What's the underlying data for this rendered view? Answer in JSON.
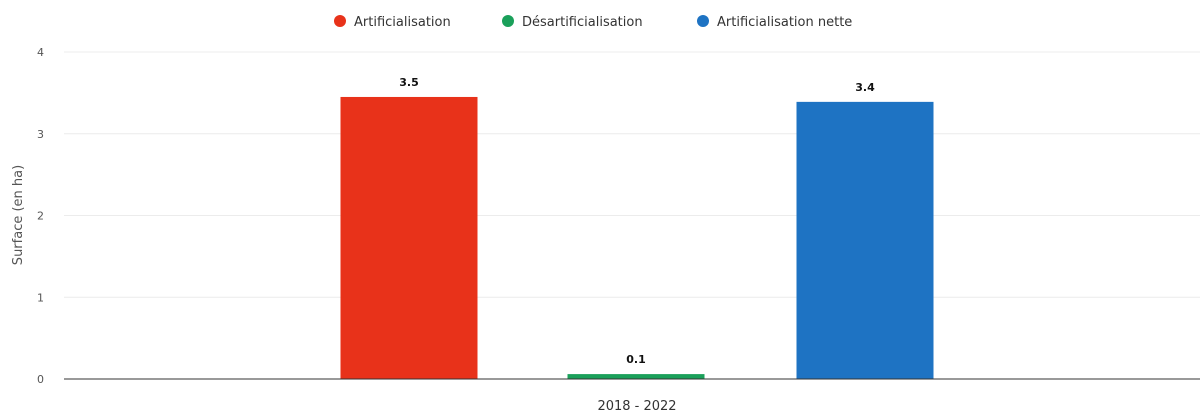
{
  "chart_data": {
    "type": "bar",
    "categories": [
      "2018 - 2022"
    ],
    "series": [
      {
        "name": "Artificialisation",
        "values": [
          3.45
        ],
        "label": "3.5",
        "color": "#e8321a"
      },
      {
        "name": "Désartificialisation",
        "values": [
          0.06
        ],
        "label": "0.1",
        "color": "#1aa05a"
      },
      {
        "name": "Artificialisation nette",
        "values": [
          3.39
        ],
        "label": "3.4",
        "color": "#1e73c3"
      }
    ],
    "xlabel": "",
    "ylabel": "Surface (en ha)",
    "ylim": [
      0,
      4
    ],
    "yticks": [
      "0",
      "1",
      "2",
      "3",
      "4"
    ],
    "grid": true,
    "legend_position": "top-center"
  }
}
